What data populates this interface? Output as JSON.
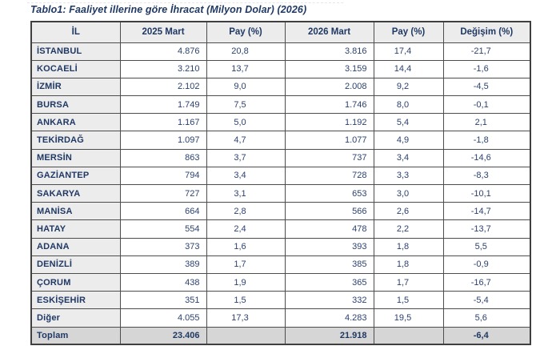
{
  "title": "Tablo1: Faaliyet illerine göre İhracat (Milyon Dolar) (2026)",
  "colors": {
    "title_navy": "#1f3864",
    "number_text": "#2c4270",
    "header_background": "#ececec",
    "total_row_background": "#d6d6d6",
    "grid_line": "#4d4d4d"
  },
  "table": {
    "columns": [
      "İL",
      "2025 Mart",
      "Pay (%)",
      "2026 Mart",
      "Pay (%)",
      "Değişim (%)"
    ],
    "rows": [
      {
        "il": "İSTANBUL",
        "mart2025": "4.876",
        "pay2025": "20,8",
        "mart2026": "3.816",
        "pay2026": "17,4",
        "degisim": "-21,7"
      },
      {
        "il": "KOCAELİ",
        "mart2025": "3.210",
        "pay2025": "13,7",
        "mart2026": "3.159",
        "pay2026": "14,4",
        "degisim": "-1,6"
      },
      {
        "il": "İZMİR",
        "mart2025": "2.102",
        "pay2025": "9,0",
        "mart2026": "2.008",
        "pay2026": "9,2",
        "degisim": "-4,5"
      },
      {
        "il": "BURSA",
        "mart2025": "1.749",
        "pay2025": "7,5",
        "mart2026": "1.746",
        "pay2026": "8,0",
        "degisim": "-0,1"
      },
      {
        "il": "ANKARA",
        "mart2025": "1.167",
        "pay2025": "5,0",
        "mart2026": "1.192",
        "pay2026": "5,4",
        "degisim": "2,1"
      },
      {
        "il": "TEKİRDAĞ",
        "mart2025": "1.097",
        "pay2025": "4,7",
        "mart2026": "1.077",
        "pay2026": "4,9",
        "degisim": "-1,8"
      },
      {
        "il": "MERSİN",
        "mart2025": "863",
        "pay2025": "3,7",
        "mart2026": "737",
        "pay2026": "3,4",
        "degisim": "-14,6"
      },
      {
        "il": "GAZİANTEP",
        "mart2025": "794",
        "pay2025": "3,4",
        "mart2026": "728",
        "pay2026": "3,3",
        "degisim": "-8,3"
      },
      {
        "il": "SAKARYA",
        "mart2025": "727",
        "pay2025": "3,1",
        "mart2026": "653",
        "pay2026": "3,0",
        "degisim": "-10,1"
      },
      {
        "il": "MANİSA",
        "mart2025": "664",
        "pay2025": "2,8",
        "mart2026": "566",
        "pay2026": "2,6",
        "degisim": "-14,7"
      },
      {
        "il": "HATAY",
        "mart2025": "554",
        "pay2025": "2,4",
        "mart2026": "478",
        "pay2026": "2,2",
        "degisim": "-13,7"
      },
      {
        "il": "ADANA",
        "mart2025": "373",
        "pay2025": "1,6",
        "mart2026": "393",
        "pay2026": "1,8",
        "degisim": "5,5"
      },
      {
        "il": "DENİZLİ",
        "mart2025": "389",
        "pay2025": "1,7",
        "mart2026": "385",
        "pay2026": "1,8",
        "degisim": "-0,9"
      },
      {
        "il": "ÇORUM",
        "mart2025": "438",
        "pay2025": "1,9",
        "mart2026": "365",
        "pay2026": "1,7",
        "degisim": "-16,7"
      },
      {
        "il": "ESKİŞEHİR",
        "mart2025": "351",
        "pay2025": "1,5",
        "mart2026": "332",
        "pay2026": "1,5",
        "degisim": "-5,4"
      },
      {
        "il": "Diğer",
        "mart2025": "4.055",
        "pay2025": "17,3",
        "mart2026": "4.283",
        "pay2026": "19,5",
        "degisim": "5,6"
      }
    ],
    "total": {
      "il": "Toplam",
      "mart2025": "23.406",
      "pay2025": "",
      "mart2026": "21.918",
      "pay2026": "",
      "degisim": "-6,4"
    }
  }
}
